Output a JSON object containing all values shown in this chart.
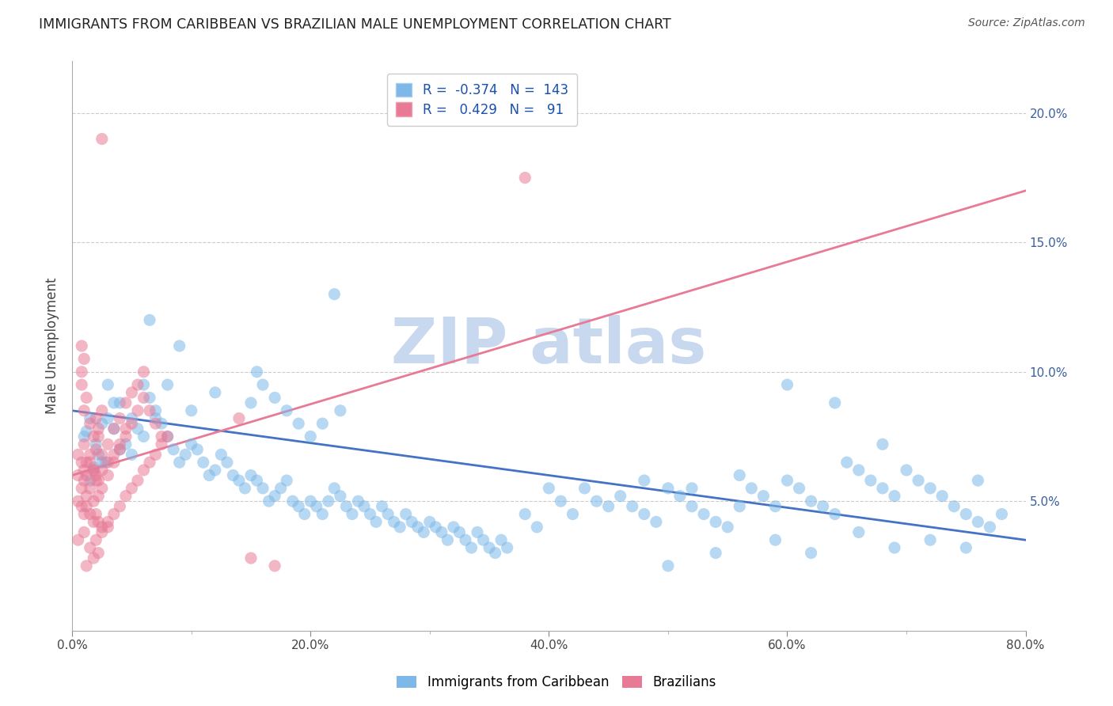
{
  "title": "IMMIGRANTS FROM CARIBBEAN VS BRAZILIAN MALE UNEMPLOYMENT CORRELATION CHART",
  "source": "Source: ZipAtlas.com",
  "ylabel_label": "Male Unemployment",
  "xlim": [
    0.0,
    0.8
  ],
  "ylim": [
    0.0,
    0.22
  ],
  "xtick_vals": [
    0.0,
    0.2,
    0.4,
    0.6,
    0.8
  ],
  "xtick_labels": [
    "0.0%",
    "20.0%",
    "40.0%",
    "60.0%",
    "80.0%"
  ],
  "ytick_vals": [
    0.05,
    0.1,
    0.15,
    0.2
  ],
  "ytick_labels": [
    "5.0%",
    "10.0%",
    "15.0%",
    "20.0%"
  ],
  "legend_name_1": "Immigrants from Caribbean",
  "legend_name_2": "Brazilians",
  "blue_color": "#7db8e8",
  "pink_color": "#e87a96",
  "blue_line_color": "#4472c4",
  "pink_line_color": "#e87a96",
  "watermark_color": "#c8d8ee",
  "blue_line": {
    "x0": 0.0,
    "y0": 0.085,
    "x1": 0.8,
    "y1": 0.035
  },
  "pink_line": {
    "x0": 0.0,
    "y0": 0.06,
    "x1": 0.8,
    "y1": 0.17
  },
  "blue_scatter": [
    [
      0.012,
      0.077
    ],
    [
      0.018,
      0.063
    ],
    [
      0.025,
      0.08
    ],
    [
      0.015,
      0.082
    ],
    [
      0.022,
      0.068
    ],
    [
      0.03,
      0.095
    ],
    [
      0.028,
      0.065
    ],
    [
      0.01,
      0.075
    ],
    [
      0.035,
      0.088
    ],
    [
      0.04,
      0.07
    ],
    [
      0.045,
      0.072
    ],
    [
      0.05,
      0.082
    ],
    [
      0.055,
      0.078
    ],
    [
      0.06,
      0.095
    ],
    [
      0.065,
      0.09
    ],
    [
      0.07,
      0.085
    ],
    [
      0.075,
      0.08
    ],
    [
      0.08,
      0.075
    ],
    [
      0.085,
      0.07
    ],
    [
      0.09,
      0.065
    ],
    [
      0.095,
      0.068
    ],
    [
      0.1,
      0.072
    ],
    [
      0.105,
      0.07
    ],
    [
      0.11,
      0.065
    ],
    [
      0.115,
      0.06
    ],
    [
      0.12,
      0.062
    ],
    [
      0.125,
      0.068
    ],
    [
      0.13,
      0.065
    ],
    [
      0.135,
      0.06
    ],
    [
      0.14,
      0.058
    ],
    [
      0.145,
      0.055
    ],
    [
      0.15,
      0.06
    ],
    [
      0.155,
      0.058
    ],
    [
      0.16,
      0.055
    ],
    [
      0.165,
      0.05
    ],
    [
      0.17,
      0.052
    ],
    [
      0.175,
      0.055
    ],
    [
      0.18,
      0.058
    ],
    [
      0.185,
      0.05
    ],
    [
      0.19,
      0.048
    ],
    [
      0.195,
      0.045
    ],
    [
      0.2,
      0.05
    ],
    [
      0.205,
      0.048
    ],
    [
      0.21,
      0.045
    ],
    [
      0.215,
      0.05
    ],
    [
      0.22,
      0.055
    ],
    [
      0.225,
      0.052
    ],
    [
      0.23,
      0.048
    ],
    [
      0.235,
      0.045
    ],
    [
      0.24,
      0.05
    ],
    [
      0.245,
      0.048
    ],
    [
      0.25,
      0.045
    ],
    [
      0.255,
      0.042
    ],
    [
      0.26,
      0.048
    ],
    [
      0.265,
      0.045
    ],
    [
      0.27,
      0.042
    ],
    [
      0.275,
      0.04
    ],
    [
      0.28,
      0.045
    ],
    [
      0.285,
      0.042
    ],
    [
      0.29,
      0.04
    ],
    [
      0.295,
      0.038
    ],
    [
      0.3,
      0.042
    ],
    [
      0.305,
      0.04
    ],
    [
      0.31,
      0.038
    ],
    [
      0.315,
      0.035
    ],
    [
      0.32,
      0.04
    ],
    [
      0.325,
      0.038
    ],
    [
      0.33,
      0.035
    ],
    [
      0.335,
      0.032
    ],
    [
      0.34,
      0.038
    ],
    [
      0.345,
      0.035
    ],
    [
      0.35,
      0.032
    ],
    [
      0.355,
      0.03
    ],
    [
      0.36,
      0.035
    ],
    [
      0.365,
      0.032
    ],
    [
      0.38,
      0.045
    ],
    [
      0.39,
      0.04
    ],
    [
      0.4,
      0.055
    ],
    [
      0.41,
      0.05
    ],
    [
      0.42,
      0.045
    ],
    [
      0.43,
      0.055
    ],
    [
      0.44,
      0.05
    ],
    [
      0.45,
      0.048
    ],
    [
      0.46,
      0.052
    ],
    [
      0.47,
      0.048
    ],
    [
      0.48,
      0.045
    ],
    [
      0.49,
      0.042
    ],
    [
      0.5,
      0.055
    ],
    [
      0.51,
      0.052
    ],
    [
      0.52,
      0.048
    ],
    [
      0.53,
      0.045
    ],
    [
      0.54,
      0.042
    ],
    [
      0.55,
      0.04
    ],
    [
      0.56,
      0.048
    ],
    [
      0.57,
      0.055
    ],
    [
      0.58,
      0.052
    ],
    [
      0.59,
      0.048
    ],
    [
      0.6,
      0.058
    ],
    [
      0.61,
      0.055
    ],
    [
      0.62,
      0.05
    ],
    [
      0.63,
      0.048
    ],
    [
      0.64,
      0.045
    ],
    [
      0.65,
      0.065
    ],
    [
      0.66,
      0.062
    ],
    [
      0.67,
      0.058
    ],
    [
      0.68,
      0.055
    ],
    [
      0.69,
      0.052
    ],
    [
      0.7,
      0.062
    ],
    [
      0.71,
      0.058
    ],
    [
      0.72,
      0.055
    ],
    [
      0.73,
      0.052
    ],
    [
      0.74,
      0.048
    ],
    [
      0.75,
      0.045
    ],
    [
      0.76,
      0.042
    ],
    [
      0.77,
      0.04
    ],
    [
      0.22,
      0.13
    ],
    [
      0.155,
      0.1
    ],
    [
      0.065,
      0.12
    ],
    [
      0.08,
      0.095
    ],
    [
      0.09,
      0.11
    ],
    [
      0.1,
      0.085
    ],
    [
      0.12,
      0.092
    ],
    [
      0.15,
      0.088
    ],
    [
      0.16,
      0.095
    ],
    [
      0.17,
      0.09
    ],
    [
      0.18,
      0.085
    ],
    [
      0.19,
      0.08
    ],
    [
      0.2,
      0.075
    ],
    [
      0.21,
      0.08
    ],
    [
      0.225,
      0.085
    ],
    [
      0.02,
      0.072
    ],
    [
      0.03,
      0.082
    ],
    [
      0.04,
      0.088
    ],
    [
      0.05,
      0.068
    ],
    [
      0.06,
      0.075
    ],
    [
      0.07,
      0.082
    ],
    [
      0.015,
      0.058
    ],
    [
      0.025,
      0.065
    ],
    [
      0.035,
      0.078
    ],
    [
      0.5,
      0.025
    ],
    [
      0.54,
      0.03
    ],
    [
      0.59,
      0.035
    ],
    [
      0.62,
      0.03
    ],
    [
      0.66,
      0.038
    ],
    [
      0.69,
      0.032
    ],
    [
      0.72,
      0.035
    ],
    [
      0.75,
      0.032
    ],
    [
      0.48,
      0.058
    ],
    [
      0.52,
      0.055
    ],
    [
      0.56,
      0.06
    ],
    [
      0.6,
      0.095
    ],
    [
      0.64,
      0.088
    ],
    [
      0.68,
      0.072
    ],
    [
      0.76,
      0.058
    ],
    [
      0.78,
      0.045
    ]
  ],
  "pink_scatter": [
    [
      0.008,
      0.095
    ],
    [
      0.01,
      0.085
    ],
    [
      0.012,
      0.09
    ],
    [
      0.015,
      0.08
    ],
    [
      0.018,
      0.075
    ],
    [
      0.02,
      0.082
    ],
    [
      0.022,
      0.078
    ],
    [
      0.025,
      0.085
    ],
    [
      0.01,
      0.072
    ],
    [
      0.015,
      0.068
    ],
    [
      0.012,
      0.065
    ],
    [
      0.018,
      0.062
    ],
    [
      0.02,
      0.07
    ],
    [
      0.022,
      0.075
    ],
    [
      0.025,
      0.068
    ],
    [
      0.03,
      0.072
    ],
    [
      0.035,
      0.078
    ],
    [
      0.04,
      0.082
    ],
    [
      0.045,
      0.088
    ],
    [
      0.05,
      0.092
    ],
    [
      0.055,
      0.095
    ],
    [
      0.06,
      0.09
    ],
    [
      0.065,
      0.085
    ],
    [
      0.07,
      0.08
    ],
    [
      0.075,
      0.075
    ],
    [
      0.005,
      0.06
    ],
    [
      0.008,
      0.055
    ],
    [
      0.01,
      0.058
    ],
    [
      0.012,
      0.052
    ],
    [
      0.015,
      0.055
    ],
    [
      0.018,
      0.05
    ],
    [
      0.02,
      0.058
    ],
    [
      0.022,
      0.052
    ],
    [
      0.025,
      0.055
    ],
    [
      0.03,
      0.06
    ],
    [
      0.035,
      0.065
    ],
    [
      0.04,
      0.07
    ],
    [
      0.045,
      0.075
    ],
    [
      0.05,
      0.08
    ],
    [
      0.055,
      0.085
    ],
    [
      0.005,
      0.05
    ],
    [
      0.008,
      0.048
    ],
    [
      0.01,
      0.045
    ],
    [
      0.012,
      0.048
    ],
    [
      0.015,
      0.045
    ],
    [
      0.018,
      0.042
    ],
    [
      0.02,
      0.045
    ],
    [
      0.022,
      0.042
    ],
    [
      0.025,
      0.04
    ],
    [
      0.03,
      0.042
    ],
    [
      0.035,
      0.045
    ],
    [
      0.04,
      0.048
    ],
    [
      0.045,
      0.052
    ],
    [
      0.05,
      0.055
    ],
    [
      0.055,
      0.058
    ],
    [
      0.06,
      0.062
    ],
    [
      0.065,
      0.065
    ],
    [
      0.07,
      0.068
    ],
    [
      0.075,
      0.072
    ],
    [
      0.08,
      0.075
    ],
    [
      0.005,
      0.068
    ],
    [
      0.008,
      0.065
    ],
    [
      0.01,
      0.062
    ],
    [
      0.012,
      0.06
    ],
    [
      0.015,
      0.065
    ],
    [
      0.018,
      0.062
    ],
    [
      0.02,
      0.06
    ],
    [
      0.022,
      0.058
    ],
    [
      0.025,
      0.062
    ],
    [
      0.03,
      0.065
    ],
    [
      0.035,
      0.068
    ],
    [
      0.04,
      0.072
    ],
    [
      0.045,
      0.078
    ],
    [
      0.008,
      0.1
    ],
    [
      0.01,
      0.105
    ],
    [
      0.025,
      0.19
    ],
    [
      0.008,
      0.11
    ],
    [
      0.38,
      0.175
    ],
    [
      0.06,
      0.1
    ],
    [
      0.005,
      0.035
    ],
    [
      0.01,
      0.038
    ],
    [
      0.015,
      0.032
    ],
    [
      0.02,
      0.035
    ],
    [
      0.025,
      0.038
    ],
    [
      0.03,
      0.04
    ],
    [
      0.018,
      0.028
    ],
    [
      0.022,
      0.03
    ],
    [
      0.012,
      0.025
    ],
    [
      0.15,
      0.028
    ],
    [
      0.17,
      0.025
    ],
    [
      0.14,
      0.082
    ]
  ]
}
